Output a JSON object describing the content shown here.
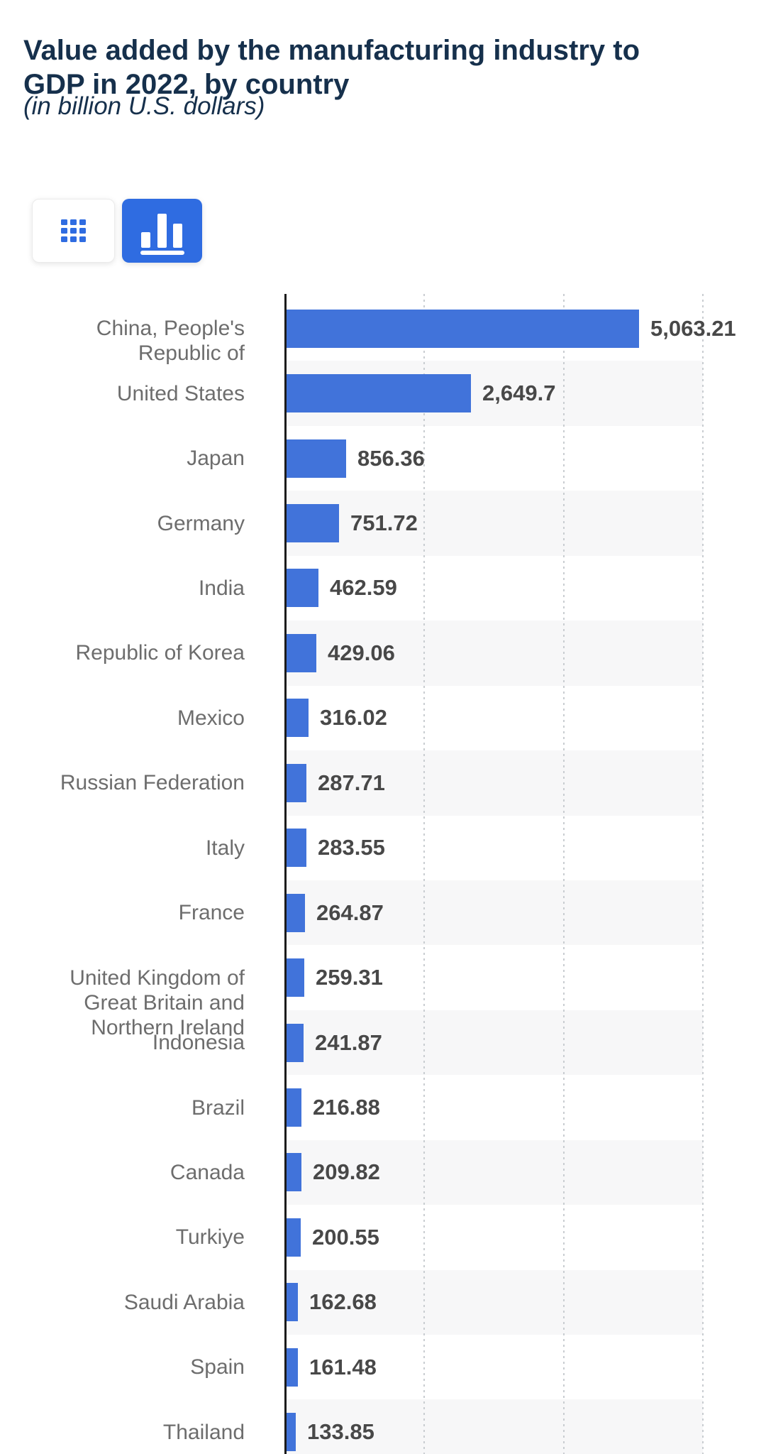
{
  "page": {
    "title": "Value added by the manufacturing industry to\nGDP in 2022, by country",
    "subtitle": "(in billion U.S. dollars)"
  },
  "toolbar": {
    "table_view_button": {
      "icon": "grid-icon",
      "active": false
    },
    "chart_view_button": {
      "icon": "bar-chart-icon",
      "active": true
    }
  },
  "colors": {
    "title_navy": "#16304c",
    "accent_blue": "#2f6ce1",
    "bar_blue": "#4173da",
    "stripe_gray": "#f7f7f8",
    "gridline_gray": "#c9cdd1",
    "axis_black": "#1c1c1c",
    "category_gray": "#6d6d6d",
    "value_gray": "#484848",
    "button_border": "#ebebeb"
  },
  "chart_data": {
    "type": "bar",
    "orientation": "horizontal",
    "title": "Value added by the manufacturing industry to GDP in 2022, by country",
    "unit": "billion U.S. dollars",
    "xlim": [
      0,
      6000
    ],
    "gridlines": [
      2000,
      4000,
      6000
    ],
    "gridline_labels_visible": false,
    "zebra_rows": true,
    "legend": "none",
    "categories": [
      "China, People's Republic of",
      "United States",
      "Japan",
      "Germany",
      "India",
      "Republic of Korea",
      "Mexico",
      "Russian Federation",
      "Italy",
      "France",
      "United Kingdom of Great Britain and Northern Ireland",
      "Indonesia",
      "Brazil",
      "Canada",
      "Turkiye",
      "Saudi Arabia",
      "Spain",
      "Thailand"
    ],
    "values": [
      5063.21,
      2649.7,
      856.36,
      751.72,
      462.59,
      429.06,
      316.02,
      287.71,
      283.55,
      264.87,
      259.31,
      241.87,
      216.88,
      209.82,
      200.55,
      162.68,
      161.48,
      133.85
    ],
    "value_labels": [
      "5,063.21",
      "2,649.7",
      "856.36",
      "751.72",
      "462.59",
      "429.06",
      "316.02",
      "287.71",
      "283.55",
      "264.87",
      "259.31",
      "241.87",
      "216.88",
      "209.82",
      "200.55",
      "162.68",
      "161.48",
      "133.85"
    ],
    "rows": [
      {
        "category": "China, People's Republic of",
        "label_lines": "China, People's\nRepublic of",
        "value": 5063.21,
        "value_label": "5,063.21"
      },
      {
        "category": "United States",
        "label_lines": "United States",
        "value": 2649.7,
        "value_label": "2,649.7"
      },
      {
        "category": "Japan",
        "label_lines": "Japan",
        "value": 856.36,
        "value_label": "856.36"
      },
      {
        "category": "Germany",
        "label_lines": "Germany",
        "value": 751.72,
        "value_label": "751.72"
      },
      {
        "category": "India",
        "label_lines": "India",
        "value": 462.59,
        "value_label": "462.59"
      },
      {
        "category": "Republic of Korea",
        "label_lines": "Republic of Korea",
        "value": 429.06,
        "value_label": "429.06"
      },
      {
        "category": "Mexico",
        "label_lines": "Mexico",
        "value": 316.02,
        "value_label": "316.02"
      },
      {
        "category": "Russian Federation",
        "label_lines": "Russian Federation",
        "value": 287.71,
        "value_label": "287.71"
      },
      {
        "category": "Italy",
        "label_lines": "Italy",
        "value": 283.55,
        "value_label": "283.55"
      },
      {
        "category": "France",
        "label_lines": "France",
        "value": 264.87,
        "value_label": "264.87"
      },
      {
        "category": "United Kingdom of Great Britain and Northern Ireland",
        "label_lines": "United Kingdom of\nGreat Britain and\nNorthern Ireland",
        "value": 259.31,
        "value_label": "259.31"
      },
      {
        "category": "Indonesia",
        "label_lines": "Indonesia",
        "value": 241.87,
        "value_label": "241.87"
      },
      {
        "category": "Brazil",
        "label_lines": "Brazil",
        "value": 216.88,
        "value_label": "216.88"
      },
      {
        "category": "Canada",
        "label_lines": "Canada",
        "value": 209.82,
        "value_label": "209.82"
      },
      {
        "category": "Turkiye",
        "label_lines": "Turkiye",
        "value": 200.55,
        "value_label": "200.55"
      },
      {
        "category": "Saudi Arabia",
        "label_lines": "Saudi Arabia",
        "value": 162.68,
        "value_label": "162.68"
      },
      {
        "category": "Spain",
        "label_lines": "Spain",
        "value": 161.48,
        "value_label": "161.48"
      },
      {
        "category": "Thailand",
        "label_lines": "Thailand",
        "value": 133.85,
        "value_label": "133.85"
      }
    ]
  }
}
